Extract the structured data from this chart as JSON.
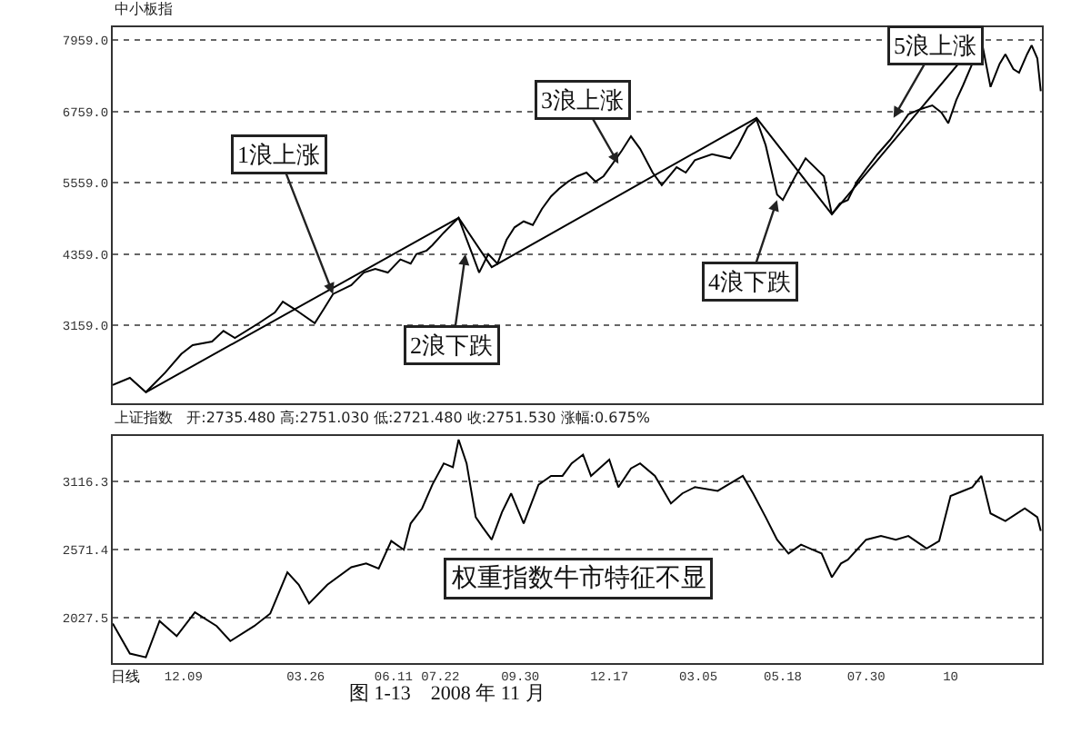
{
  "chart_data": [
    {
      "type": "line",
      "title": "中小板指",
      "grid": "y",
      "tick_labels": "y",
      "marker": "none",
      "line_style": "solid",
      "xlim": [
        "2008-10-08",
        "2010-12-31"
      ],
      "ylim": [
        1853,
        8173
      ],
      "yticks": [
        {
          "value": 3159,
          "label": "3159.0"
        },
        {
          "value": 4359,
          "label": "4359.0"
        },
        {
          "value": 5559,
          "label": "5559.0"
        },
        {
          "value": 6759,
          "label": "6759.0"
        },
        {
          "value": 7959,
          "label": "7959.0"
        }
      ],
      "series": [
        {
          "color": "#000000",
          "x": [
            "2008-10-08",
            "2008-10-23",
            "2008-11-06",
            "2008-11-23",
            "2008-12-07",
            "2008-12-17",
            "2009-01-03",
            "2009-01-13",
            "2009-01-23",
            "2009-02-13",
            "2009-02-27",
            "2009-03-06",
            "2009-03-16",
            "2009-04-03",
            "2009-04-11",
            "2009-04-19",
            "2009-05-05",
            "2009-05-16",
            "2009-05-26",
            "2009-06-06",
            "2009-06-17",
            "2009-06-26",
            "2009-07-01",
            "2009-07-10",
            "2009-07-15",
            "2009-07-25",
            "2009-08-07",
            "2009-08-13",
            "2009-08-19",
            "2009-08-25",
            "2009-09-02",
            "2009-09-10",
            "2009-09-18",
            "2009-09-25",
            "2009-10-03",
            "2009-10-11",
            "2009-10-19",
            "2009-10-27",
            "2009-11-03",
            "2009-11-11",
            "2009-11-19",
            "2009-11-27",
            "2009-12-05",
            "2009-12-12",
            "2009-12-20",
            "2009-12-28",
            "2010-01-05",
            "2010-01-13",
            "2010-01-24",
            "2010-02-01",
            "2010-02-14",
            "2010-02-22",
            "2010-03-02",
            "2010-03-17",
            "2010-04-02",
            "2010-04-09",
            "2010-04-17",
            "2010-04-25",
            "2010-05-03",
            "2010-05-13",
            "2010-05-18",
            "2010-05-29",
            "2010-06-07",
            "2010-06-15",
            "2010-06-23",
            "2010-06-30",
            "2010-07-07",
            "2010-07-14",
            "2010-07-22",
            "2010-07-30",
            "2010-08-09",
            "2010-08-20",
            "2010-08-28",
            "2010-09-05",
            "2010-09-16",
            "2010-09-26",
            "2010-10-04",
            "2010-10-10",
            "2010-10-17",
            "2010-10-23",
            "2010-10-31",
            "2010-11-08",
            "2010-11-16",
            "2010-11-24",
            "2010-11-29",
            "2010-12-06",
            "2010-12-11",
            "2010-12-18",
            "2010-12-22",
            "2010-12-27",
            "2010-12-30"
          ],
          "values": [
            2160,
            2280,
            2040,
            2370,
            2680,
            2830,
            2890,
            3070,
            2950,
            3200,
            3380,
            3560,
            3440,
            3200,
            3440,
            3690,
            3840,
            4050,
            4110,
            4050,
            4270,
            4200,
            4360,
            4420,
            4510,
            4720,
            4970,
            4660,
            4360,
            4050,
            4360,
            4200,
            4600,
            4810,
            4910,
            4850,
            5120,
            5330,
            5460,
            5580,
            5670,
            5730,
            5580,
            5670,
            5880,
            6100,
            6340,
            6130,
            5730,
            5520,
            5820,
            5730,
            5940,
            6040,
            5970,
            6190,
            6490,
            6620,
            6190,
            5360,
            5270,
            5670,
            5970,
            5820,
            5670,
            5030,
            5210,
            5270,
            5580,
            5790,
            6040,
            6280,
            6490,
            6710,
            6800,
            6860,
            6740,
            6560,
            6950,
            7200,
            7560,
            7960,
            7170,
            7560,
            7720,
            7470,
            7410,
            7720,
            7870,
            7650,
            7100
          ]
        },
        {
          "color": "#000000",
          "x": [
            "2008-11-06",
            "2009-08-07",
            "2009-09-05",
            "2010-04-25",
            "2010-06-30",
            "2010-11-08"
          ],
          "values": [
            2040,
            4970,
            4140,
            6650,
            5030,
            8020
          ]
        }
      ],
      "annotations": [
        {
          "text": "1浪上涨",
          "x": "2009-04-19",
          "y": 3690
        },
        {
          "text": "2浪下跌",
          "x": "2009-08-13",
          "y": 4360
        },
        {
          "text": "3浪上涨",
          "x": "2009-12-25",
          "y": 5880
        },
        {
          "text": "4浪下跌",
          "x": "2010-05-13",
          "y": 5270
        },
        {
          "text": "5浪上涨",
          "x": "2010-08-23",
          "y": 6650
        }
      ]
    },
    {
      "type": "line",
      "title": "上证指数",
      "subtitle": "开:2735.480 高:2751.030 低:2721.480 收:2751.530 涨幅:0.675%",
      "grid": "y",
      "marker": "none",
      "line_style": "solid",
      "xlim": [
        "2008-10-08",
        "2010-12-31"
      ],
      "xticks": [
        {
          "value": "2008-12-09",
          "label": "12.09"
        },
        {
          "value": "2009-03-26",
          "label": "03.26"
        },
        {
          "value": "2009-06-11",
          "label": "06.11"
        },
        {
          "value": "2009-07-22",
          "label": "07.22"
        },
        {
          "value": "2009-09-30",
          "label": "09.30"
        },
        {
          "value": "2009-12-17",
          "label": "12.17"
        },
        {
          "value": "2010-03-05",
          "label": "03.05"
        },
        {
          "value": "2010-05-18",
          "label": "05.18"
        },
        {
          "value": "2010-07-30",
          "label": "07.30"
        },
        {
          "value": "2010-10-12",
          "label": "10"
        }
      ],
      "ylim": [
        1664,
        3479
      ],
      "yticks": [
        {
          "value": 2027.5,
          "label": "2027.5"
        },
        {
          "value": 2571.4,
          "label": "2571.4"
        },
        {
          "value": 3116.3,
          "label": "3116.3"
        }
      ],
      "series": [
        {
          "color": "#000000",
          "x": [
            "2008-10-08",
            "2008-10-23",
            "2008-11-06",
            "2008-11-18",
            "2008-12-03",
            "2008-12-19",
            "2009-01-07",
            "2009-01-19",
            "2009-02-09",
            "2009-02-23",
            "2009-03-10",
            "2009-03-20",
            "2009-03-29",
            "2009-04-14",
            "2009-05-05",
            "2009-05-18",
            "2009-05-29",
            "2009-06-09",
            "2009-06-20",
            "2009-06-26",
            "2009-07-06",
            "2009-07-15",
            "2009-07-25",
            "2009-08-02",
            "2009-08-07",
            "2009-08-14",
            "2009-08-22",
            "2009-08-28",
            "2009-09-05",
            "2009-09-14",
            "2009-09-22",
            "2009-10-03",
            "2009-10-16",
            "2009-10-27",
            "2009-11-06",
            "2009-11-14",
            "2009-11-24",
            "2009-12-01",
            "2009-12-17",
            "2009-12-25",
            "2010-01-05",
            "2010-01-13",
            "2010-01-26",
            "2010-02-09",
            "2010-02-19",
            "2010-03-02",
            "2010-03-22",
            "2010-04-13",
            "2010-04-22",
            "2010-05-03",
            "2010-05-13",
            "2010-05-23",
            "2010-06-03",
            "2010-06-13",
            "2010-06-21",
            "2010-06-30",
            "2010-07-08",
            "2010-07-14",
            "2010-07-30",
            "2010-08-12",
            "2010-08-25",
            "2010-09-05",
            "2010-09-21",
            "2010-10-02",
            "2010-10-12",
            "2010-10-23",
            "2010-10-31",
            "2010-11-08",
            "2010-11-16",
            "2010-11-29",
            "2010-12-16",
            "2010-12-27",
            "2010-12-30"
          ],
          "values": [
            1980,
            1740,
            1710,
            2000,
            1880,
            2070,
            1960,
            1840,
            1960,
            2060,
            2390,
            2290,
            2140,
            2290,
            2430,
            2460,
            2420,
            2640,
            2570,
            2780,
            2900,
            3090,
            3260,
            3230,
            3450,
            3260,
            2830,
            2750,
            2650,
            2870,
            3020,
            2780,
            3090,
            3160,
            3160,
            3260,
            3330,
            3160,
            3290,
            3070,
            3220,
            3260,
            3160,
            2940,
            3020,
            3070,
            3040,
            3160,
            3020,
            2830,
            2650,
            2540,
            2610,
            2570,
            2540,
            2350,
            2460,
            2490,
            2650,
            2680,
            2650,
            2680,
            2580,
            2640,
            3000,
            3040,
            3070,
            3160,
            2860,
            2800,
            2900,
            2830,
            2720
          ]
        }
      ],
      "annotations": [
        "权重指数牛市特征不显",
        "日线",
        "图 1-13　2008 年 11 月"
      ]
    }
  ]
}
